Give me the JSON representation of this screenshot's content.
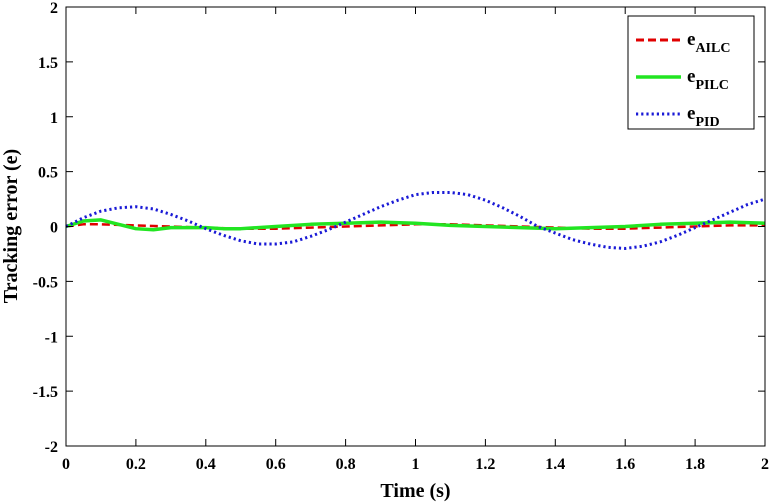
{
  "chart_data": {
    "type": "line",
    "title": "",
    "xlabel": "Time (s)",
    "ylabel": "Tracking error (e)",
    "xlim": [
      0,
      2
    ],
    "ylim": [
      -2,
      2
    ],
    "xticks": [
      0,
      0.2,
      0.4,
      0.6,
      0.8,
      1,
      1.2,
      1.4,
      1.6,
      1.8,
      2
    ],
    "yticks": [
      -2,
      -1.5,
      -1,
      -0.5,
      0,
      0.5,
      1,
      1.5,
      2
    ],
    "xtick_labels": [
      "0",
      "0.2",
      "0.4",
      "0.6",
      "0.8",
      "1",
      "1.2",
      "1.4",
      "1.6",
      "1.8",
      "2"
    ],
    "ytick_labels": [
      "-2",
      "-1.5",
      "-1",
      "-0.5",
      "0",
      "0.5",
      "1",
      "1.5",
      "2"
    ],
    "grid": false,
    "legend_position": "top-right",
    "series": [
      {
        "name": "e_AILC",
        "legend_main": "e",
        "legend_sub": "AILC",
        "color": "#e00000",
        "style": "dashed",
        "x": [
          0,
          0.05,
          0.1,
          0.2,
          0.3,
          0.4,
          0.5,
          0.6,
          0.7,
          0.8,
          0.9,
          1.0,
          1.1,
          1.2,
          1.3,
          1.4,
          1.5,
          1.6,
          1.7,
          1.8,
          1.9,
          2.0
        ],
        "y": [
          0,
          0.02,
          0.02,
          0.01,
          0.0,
          -0.01,
          -0.02,
          -0.02,
          -0.01,
          0.0,
          0.01,
          0.02,
          0.02,
          0.01,
          0.0,
          -0.01,
          -0.02,
          -0.02,
          -0.01,
          0.0,
          0.01,
          0.01
        ]
      },
      {
        "name": "e_PILC",
        "legend_main": "e",
        "legend_sub": "PILC",
        "color": "#22e522",
        "style": "solid",
        "x": [
          0,
          0.05,
          0.1,
          0.15,
          0.2,
          0.25,
          0.3,
          0.35,
          0.4,
          0.45,
          0.5,
          0.6,
          0.7,
          0.8,
          0.9,
          1.0,
          1.1,
          1.2,
          1.3,
          1.4,
          1.5,
          1.6,
          1.7,
          1.8,
          1.9,
          2.0
        ],
        "y": [
          0,
          0.05,
          0.06,
          0.02,
          -0.02,
          -0.03,
          -0.01,
          -0.01,
          -0.01,
          -0.02,
          -0.02,
          0.0,
          0.02,
          0.03,
          0.04,
          0.03,
          0.01,
          0.0,
          -0.01,
          -0.02,
          -0.01,
          0.0,
          0.02,
          0.03,
          0.04,
          0.03
        ]
      },
      {
        "name": "e_PID",
        "legend_main": "e",
        "legend_sub": "PID",
        "color": "#1a1ad6",
        "style": "dotted",
        "x": [
          0,
          0.05,
          0.1,
          0.15,
          0.2,
          0.25,
          0.3,
          0.35,
          0.4,
          0.45,
          0.5,
          0.55,
          0.6,
          0.65,
          0.7,
          0.75,
          0.8,
          0.85,
          0.9,
          0.95,
          1.0,
          1.05,
          1.1,
          1.15,
          1.2,
          1.25,
          1.3,
          1.35,
          1.4,
          1.45,
          1.5,
          1.55,
          1.6,
          1.65,
          1.7,
          1.75,
          1.8,
          1.85,
          1.9,
          1.95,
          2.0
        ],
        "y": [
          0,
          0.08,
          0.14,
          0.17,
          0.18,
          0.16,
          0.11,
          0.05,
          -0.02,
          -0.08,
          -0.13,
          -0.16,
          -0.16,
          -0.14,
          -0.09,
          -0.03,
          0.04,
          0.11,
          0.18,
          0.24,
          0.29,
          0.31,
          0.31,
          0.29,
          0.24,
          0.17,
          0.09,
          0.0,
          -0.06,
          -0.12,
          -0.16,
          -0.19,
          -0.2,
          -0.18,
          -0.14,
          -0.08,
          -0.01,
          0.06,
          0.13,
          0.2,
          0.25
        ]
      }
    ]
  }
}
